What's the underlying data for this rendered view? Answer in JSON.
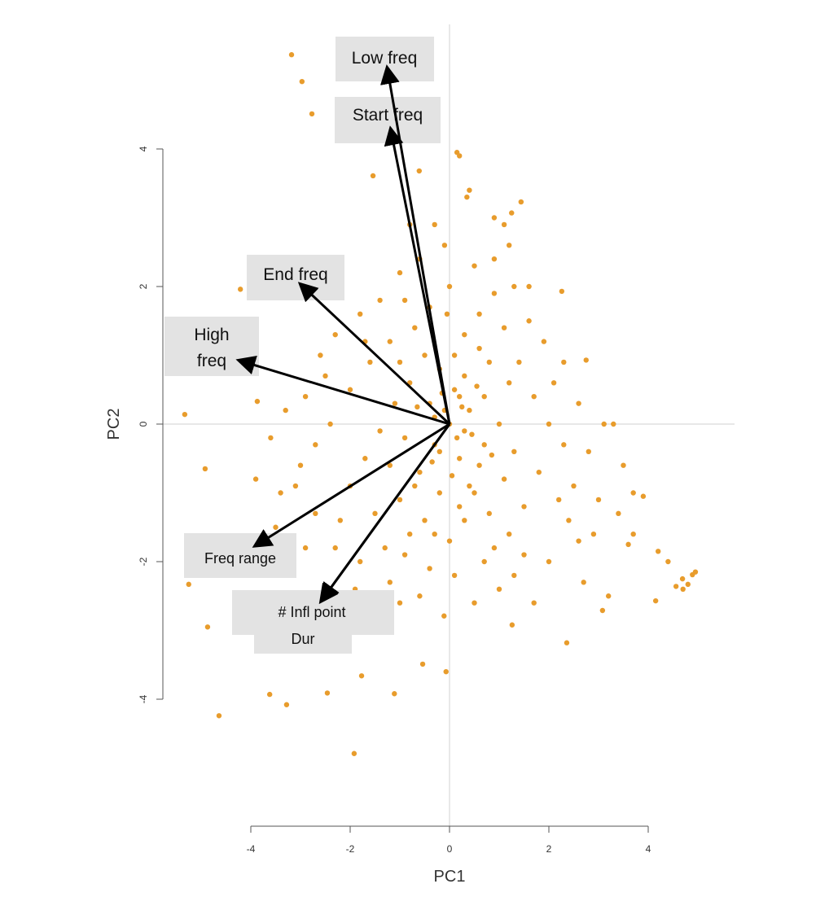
{
  "chart_data": {
    "type": "scatter",
    "subtype": "pca-biplot",
    "title": "",
    "xlabel": "PC1",
    "ylabel": "PC2",
    "xlim": [
      -5.5,
      5.8
    ],
    "ylim": [
      -5.8,
      5.8
    ],
    "xticks": [
      "-4",
      "-2",
      "0",
      "2",
      "4"
    ],
    "yticks": [
      "-4",
      "-2",
      "0",
      "2",
      "4"
    ],
    "xtick_values": [
      -4,
      -2,
      0,
      2,
      4
    ],
    "ytick_values": [
      -4,
      -2,
      0,
      2,
      4
    ],
    "grid": false,
    "reference_lines": {
      "x": 0,
      "y": 0
    },
    "point_color": "#E89C2C",
    "arrow_color": "#000000",
    "label_box_color": "#E3E3E3",
    "loadings": [
      {
        "name": "Low freq",
        "x": -1.25,
        "y": 5.16
      },
      {
        "name": "Start freq",
        "x": -1.18,
        "y": 4.27
      },
      {
        "name": "End freq",
        "x": -2.98,
        "y": 2.02
      },
      {
        "name": "High freq",
        "x": -4.21,
        "y": 0.92
      },
      {
        "name": "Freq range",
        "x": -3.89,
        "y": -1.76
      },
      {
        "name": "# Infl point",
        "x": -2.57,
        "y": -2.56
      },
      {
        "name": "Dur",
        "x": -2.55,
        "y": -2.54
      }
    ],
    "points": [
      [
        -3.18,
        5.37
      ],
      [
        -2.97,
        4.98
      ],
      [
        -2.77,
        4.51
      ],
      [
        -1.79,
        4.21
      ],
      [
        -1.54,
        3.61
      ],
      [
        -0.61,
        3.68
      ],
      [
        0.15,
        3.95
      ],
      [
        -5.33,
        0.14
      ],
      [
        -4.21,
        1.96
      ],
      [
        -3.87,
        0.33
      ],
      [
        -4.92,
        -0.65
      ],
      [
        -5.25,
        -2.33
      ],
      [
        -4.87,
        -2.95
      ],
      [
        -4.64,
        -4.24
      ],
      [
        -3.62,
        -3.93
      ],
      [
        -3.28,
        -4.08
      ],
      [
        -2.46,
        -3.91
      ],
      [
        -1.92,
        -4.79
      ],
      [
        -1.77,
        -3.66
      ],
      [
        -1.11,
        -3.92
      ],
      [
        -0.54,
        -3.49
      ],
      [
        -0.07,
        -3.6
      ],
      [
        2.36,
        -3.18
      ],
      [
        4.69,
        -2.25
      ],
      [
        4.89,
        -2.19
      ],
      [
        4.56,
        -2.36
      ],
      [
        4.8,
        -2.33
      ],
      [
        4.15,
        -2.57
      ],
      [
        3.9,
        -1.05
      ],
      [
        3.11,
        0.0
      ],
      [
        2.75,
        0.93
      ],
      [
        2.26,
        1.93
      ],
      [
        1.44,
        3.23
      ],
      [
        1.25,
        3.07
      ],
      [
        3.08,
        -2.71
      ],
      [
        1.26,
        -2.92
      ],
      [
        -0.11,
        -2.79
      ],
      [
        4.95,
        -2.15
      ],
      [
        4.7,
        -2.4
      ],
      [
        4.4,
        -2.0
      ],
      [
        4.2,
        -1.85
      ],
      [
        3.7,
        -1.0
      ],
      [
        3.6,
        -1.75
      ],
      [
        3.2,
        -2.5
      ],
      [
        3.4,
        -1.3
      ],
      [
        2.9,
        -1.6
      ],
      [
        2.6,
        -1.7
      ],
      [
        2.5,
        -0.9
      ],
      [
        2.3,
        -0.3
      ],
      [
        2.8,
        -0.4
      ],
      [
        3.3,
        0.0
      ],
      [
        2.1,
        0.6
      ],
      [
        1.9,
        1.2
      ],
      [
        1.6,
        2.0
      ],
      [
        1.2,
        2.6
      ],
      [
        0.9,
        3.0
      ],
      [
        0.4,
        3.4
      ],
      [
        0.2,
        3.9
      ],
      [
        0.35,
        3.3
      ],
      [
        -0.3,
        2.9
      ],
      [
        -0.8,
        2.9
      ],
      [
        -0.6,
        2.4
      ],
      [
        -1.0,
        2.2
      ],
      [
        -1.4,
        1.8
      ],
      [
        -1.8,
        1.6
      ],
      [
        -2.3,
        1.3
      ],
      [
        -2.5,
        0.7
      ],
      [
        -2.9,
        0.4
      ],
      [
        -3.3,
        0.2
      ],
      [
        -3.6,
        -0.2
      ],
      [
        -3.9,
        -0.8
      ],
      [
        -3.4,
        -1.0
      ],
      [
        -3.0,
        -0.6
      ],
      [
        -2.7,
        -1.3
      ],
      [
        -2.3,
        -1.8
      ],
      [
        -1.9,
        -2.4
      ],
      [
        -1.6,
        -2.7
      ],
      [
        -1.2,
        -2.3
      ],
      [
        -0.9,
        -1.9
      ],
      [
        -0.6,
        -2.5
      ],
      [
        -0.3,
        -1.6
      ],
      [
        0.1,
        -2.2
      ],
      [
        0.5,
        -2.6
      ],
      [
        0.9,
        -1.8
      ],
      [
        1.3,
        -2.2
      ],
      [
        1.7,
        -2.6
      ],
      [
        2.0,
        -2.0
      ],
      [
        1.5,
        -1.2
      ],
      [
        1.1,
        -0.8
      ],
      [
        0.7,
        -0.3
      ],
      [
        0.4,
        0.2
      ],
      [
        0.1,
        0.5
      ],
      [
        -0.2,
        0.8
      ],
      [
        -0.5,
        1.0
      ],
      [
        -0.8,
        0.6
      ],
      [
        -1.1,
        0.3
      ],
      [
        -1.4,
        -0.1
      ],
      [
        -1.7,
        -0.5
      ],
      [
        -2.0,
        -0.9
      ],
      [
        -1.5,
        -1.3
      ],
      [
        -1.0,
        -1.1
      ],
      [
        -0.6,
        -0.7
      ],
      [
        -0.3,
        -0.3
      ],
      [
        0.0,
        0.0
      ],
      [
        0.2,
        -0.5
      ],
      [
        0.5,
        -1.0
      ],
      [
        0.8,
        -1.3
      ],
      [
        1.2,
        -1.6
      ],
      [
        0.3,
        1.3
      ],
      [
        0.6,
        1.6
      ],
      [
        0.9,
        1.9
      ],
      [
        1.1,
        1.4
      ],
      [
        1.4,
        0.9
      ],
      [
        1.7,
        0.4
      ],
      [
        2.0,
        0.0
      ],
      [
        1.8,
        -0.7
      ],
      [
        2.2,
        -1.1
      ],
      [
        0.0,
        2.0
      ],
      [
        -0.4,
        1.7
      ],
      [
        -0.7,
        1.4
      ],
      [
        -1.2,
        1.2
      ],
      [
        -1.6,
        0.9
      ],
      [
        -2.0,
        0.5
      ],
      [
        -2.4,
        0.0
      ],
      [
        -2.7,
        -0.3
      ],
      [
        -1.2,
        -0.6
      ],
      [
        -0.9,
        -0.2
      ],
      [
        -0.4,
        0.3
      ],
      [
        0.3,
        0.7
      ],
      [
        0.7,
        0.4
      ],
      [
        1.0,
        0.0
      ],
      [
        1.3,
        -0.4
      ],
      [
        0.6,
        -0.6
      ],
      [
        0.2,
        -1.2
      ],
      [
        -0.2,
        -1.0
      ],
      [
        -0.5,
        -1.4
      ],
      [
        -0.8,
        -1.6
      ],
      [
        0.9,
        2.4
      ],
      [
        1.1,
        2.9
      ],
      [
        1.3,
        2.0
      ],
      [
        0.5,
        2.3
      ],
      [
        -0.1,
        2.6
      ],
      [
        -0.9,
        1.8
      ],
      [
        -1.7,
        1.2
      ],
      [
        -2.6,
        1.0
      ],
      [
        -3.1,
        -0.9
      ],
      [
        -3.5,
        -1.5
      ],
      [
        -2.9,
        -1.8
      ],
      [
        -2.2,
        -1.4
      ],
      [
        -1.8,
        -2.0
      ],
      [
        -1.3,
        -1.8
      ],
      [
        -1.0,
        -2.6
      ],
      [
        -0.4,
        -2.1
      ],
      [
        0.0,
        -1.7
      ],
      [
        0.3,
        -1.4
      ],
      [
        0.7,
        -2.0
      ],
      [
        1.0,
        -2.4
      ],
      [
        1.5,
        -1.9
      ],
      [
        2.4,
        -1.4
      ],
      [
        2.7,
        -2.3
      ],
      [
        3.0,
        -1.1
      ],
      [
        3.5,
        -0.6
      ],
      [
        3.7,
        -1.6
      ],
      [
        2.6,
        0.3
      ],
      [
        2.3,
        0.9
      ],
      [
        1.6,
        1.5
      ],
      [
        0.8,
        0.9
      ],
      [
        0.1,
        1.0
      ],
      [
        -0.3,
        0.1
      ],
      [
        0.15,
        -0.2
      ],
      [
        0.45,
        -0.15
      ],
      [
        -0.15,
        0.45
      ],
      [
        0.25,
        0.25
      ],
      [
        -0.35,
        -0.55
      ],
      [
        0.55,
        0.55
      ],
      [
        0.05,
        -0.75
      ],
      [
        -0.65,
        0.25
      ],
      [
        0.85,
        -0.45
      ],
      [
        -0.05,
        1.6
      ],
      [
        0.4,
        -0.9
      ],
      [
        -0.7,
        -0.9
      ],
      [
        1.2,
        0.6
      ],
      [
        -1.0,
        0.9
      ],
      [
        0.6,
        1.1
      ],
      [
        -0.2,
        -0.4
      ],
      [
        0.3,
        -0.1
      ],
      [
        0.2,
        0.4
      ],
      [
        -0.1,
        0.2
      ]
    ]
  }
}
